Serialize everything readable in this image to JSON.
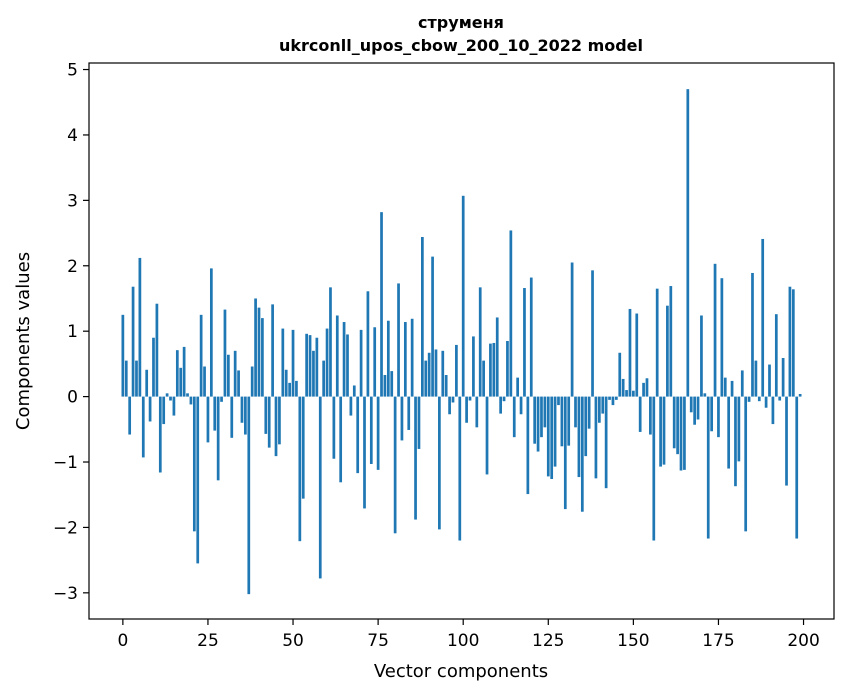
{
  "chart_data": {
    "type": "bar",
    "title": "струменя",
    "subtitle": "ukrconll_upos_cbow_200_10_2022 model",
    "xlabel": "Vector components",
    "ylabel": "Components values",
    "xlim": [
      -9.95,
      208.95
    ],
    "ylim": [
      -3.4,
      5.1
    ],
    "xticks": [
      0,
      25,
      50,
      75,
      100,
      125,
      150,
      175,
      200
    ],
    "xtick_labels": [
      "0",
      "25",
      "50",
      "75",
      "100",
      "125",
      "150",
      "175",
      "200"
    ],
    "yticks": [
      -3,
      -2,
      -1,
      0,
      1,
      2,
      3,
      4,
      5
    ],
    "ytick_labels": [
      "−3",
      "−2",
      "−1",
      "0",
      "1",
      "2",
      "3",
      "4",
      "5"
    ],
    "bar_color": "#1f77b4",
    "grid": false,
    "series": [
      {
        "values": [
          1.25,
          0.55,
          -0.58,
          1.68,
          0.55,
          2.12,
          -0.93,
          0.41,
          -0.38,
          0.9,
          1.42,
          -1.16,
          -0.42,
          0.05,
          -0.06,
          -0.29,
          0.71,
          0.44,
          0.76,
          0.05,
          -0.12,
          -2.06,
          -2.55,
          1.25,
          0.46,
          -0.7,
          1.96,
          -0.52,
          -1.28,
          -0.08,
          1.33,
          0.64,
          -0.63,
          0.7,
          0.4,
          -0.4,
          -0.58,
          -3.02,
          0.46,
          1.5,
          1.36,
          1.2,
          -0.57,
          -0.78,
          1.41,
          -0.91,
          -0.73,
          1.04,
          0.41,
          0.21,
          1.02,
          0.24,
          -2.21,
          -1.56,
          0.96,
          0.94,
          0.7,
          0.9,
          -2.78,
          0.55,
          1.04,
          1.67,
          -0.95,
          1.24,
          -1.31,
          1.14,
          0.95,
          -0.29,
          0.17,
          -1.17,
          1.02,
          -1.71,
          1.61,
          -1.03,
          1.06,
          -1.12,
          2.82,
          0.33,
          1.16,
          0.39,
          -2.09,
          1.73,
          -0.67,
          1.14,
          -0.51,
          1.19,
          -1.88,
          -0.8,
          2.44,
          0.55,
          0.67,
          2.14,
          0.72,
          -2.03,
          0.7,
          0.33,
          -0.27,
          -0.09,
          0.79,
          -2.2,
          3.07,
          -0.4,
          -0.06,
          0.92,
          -0.47,
          1.67,
          0.55,
          -1.19,
          0.81,
          0.82,
          1.21,
          -0.26,
          -0.07,
          0.85,
          2.54,
          -0.62,
          0.29,
          -0.27,
          1.66,
          -1.49,
          1.82,
          -0.72,
          -0.84,
          -0.62,
          -0.47,
          -1.22,
          -1.26,
          -1.07,
          -0.13,
          -0.76,
          -1.72,
          -0.75,
          2.05,
          -0.47,
          -1.23,
          -1.76,
          -0.91,
          -0.49,
          1.93,
          -1.25,
          -0.4,
          -0.26,
          -1.4,
          -0.05,
          -0.13,
          -0.05,
          0.67,
          0.27,
          0.1,
          1.34,
          0.09,
          1.27,
          -0.54,
          0.21,
          0.28,
          -0.58,
          -2.2,
          1.65,
          -1.07,
          -1.04,
          1.39,
          1.69,
          -0.79,
          -0.88,
          -1.13,
          -1.12,
          4.7,
          -0.24,
          -0.43,
          -0.35,
          1.24,
          0.05,
          -2.17,
          -0.53,
          2.03,
          -0.62,
          1.81,
          0.29,
          -1.1,
          0.24,
          -1.37,
          -0.99,
          0.4,
          -2.06,
          -0.08,
          1.89,
          0.55,
          -0.07,
          2.41,
          -0.17,
          0.49,
          -0.42,
          1.26,
          -0.06,
          0.59,
          -1.36,
          1.68,
          1.64,
          -2.17,
          0.04
        ]
      }
    ]
  }
}
